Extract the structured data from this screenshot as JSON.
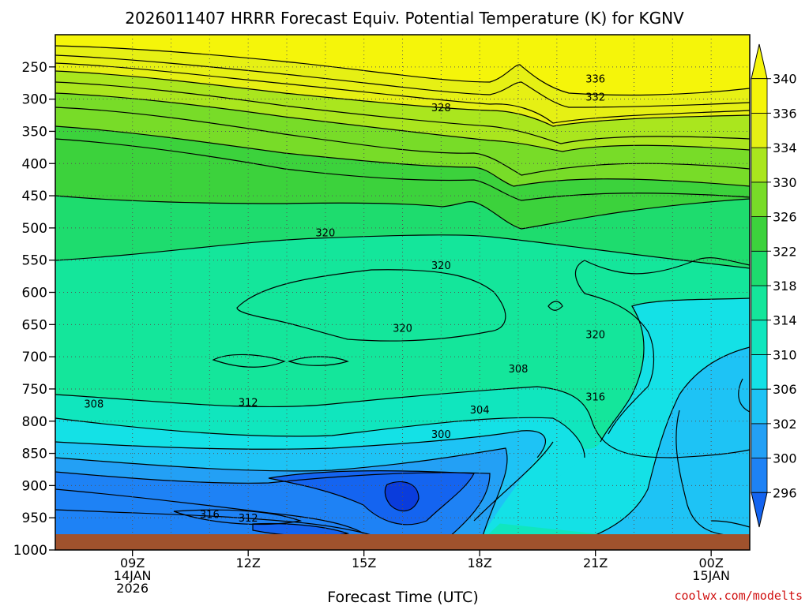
{
  "chart_data": {
    "type": "heatmap",
    "title": "2026011407 HRRR Forecast Equiv. Potential Temperature (K) for KGNV",
    "xlabel": "Forecast Time (UTC)",
    "ylabel": "",
    "credit": "coolwx.com/modelts",
    "x_ticks": [
      {
        "hour": 9,
        "lines": [
          "09Z",
          "14JAN",
          "2026"
        ]
      },
      {
        "hour": 12,
        "lines": [
          "12Z"
        ]
      },
      {
        "hour": 15,
        "lines": [
          "15Z"
        ]
      },
      {
        "hour": 18,
        "lines": [
          "18Z"
        ]
      },
      {
        "hour": 21,
        "lines": [
          "21Z"
        ]
      },
      {
        "hour": 24,
        "lines": [
          "00Z",
          "15JAN"
        ]
      }
    ],
    "xlim": [
      7.0,
      25.0
    ],
    "y_ticks": [
      250,
      300,
      350,
      400,
      450,
      500,
      550,
      600,
      650,
      700,
      750,
      800,
      850,
      900,
      950,
      1000
    ],
    "ylim": [
      200,
      1000
    ],
    "colorbar_levels": [
      296,
      300,
      302,
      306,
      310,
      314,
      318,
      322,
      326,
      330,
      334,
      336,
      340
    ],
    "colorbar_colors": [
      "#1464f0",
      "#1e82f5",
      "#23a0f5",
      "#1ec3f5",
      "#14e1e6",
      "#10e6be",
      "#14e69b",
      "#1edc6e",
      "#3cd23c",
      "#78dc28",
      "#aae61e",
      "#e6f014",
      "#f5f50a"
    ],
    "contour_labels": [
      {
        "text": "336",
        "hour": 21.0,
        "p": 268
      },
      {
        "text": "332",
        "hour": 21.0,
        "p": 296
      },
      {
        "text": "328",
        "hour": 17.0,
        "p": 313
      },
      {
        "text": "320",
        "hour": 14.0,
        "p": 507
      },
      {
        "text": "320",
        "hour": 17.0,
        "p": 558
      },
      {
        "text": "320",
        "hour": 16.0,
        "p": 655
      },
      {
        "text": "320",
        "hour": 21.0,
        "p": 665
      },
      {
        "text": "308",
        "hour": 19.0,
        "p": 718
      },
      {
        "text": "316",
        "hour": 21.0,
        "p": 762
      },
      {
        "text": "312",
        "hour": 12.0,
        "p": 770
      },
      {
        "text": "308",
        "hour": 8.0,
        "p": 773
      },
      {
        "text": "304",
        "hour": 18.0,
        "p": 782
      },
      {
        "text": "300",
        "hour": 17.0,
        "p": 820
      },
      {
        "text": "316",
        "hour": 11.0,
        "p": 944
      },
      {
        "text": "312",
        "hour": 12.0,
        "p": 950
      }
    ]
  }
}
